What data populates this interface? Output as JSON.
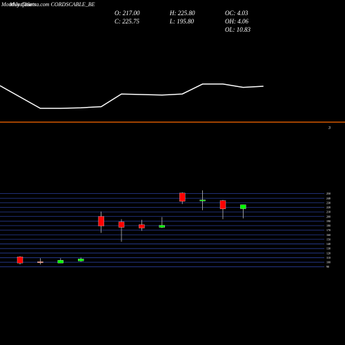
{
  "header": {
    "title": "Monthly Charts",
    "site": "MunafaSutra.com CORDSCABLE_BE"
  },
  "ohlc": {
    "open": "O: 217.00",
    "close": "C: 225.75",
    "high": "H: 225.80",
    "low": "L: 195.80",
    "oc": "OC: 4.03",
    "oh": "OH: 4.06",
    "ol": "OL: 10.83"
  },
  "indicator": {
    "type": "line",
    "label": "3",
    "color": "#ffffff",
    "ylim": [
      0,
      10
    ],
    "values": [
      6.6,
      2.5,
      2.5,
      2.6,
      2.8,
      5.1,
      5.0,
      4.9,
      5.1,
      6.9,
      6.9,
      6.3,
      6.5
    ]
  },
  "chart_data": {
    "type": "candlestick",
    "open": [
      111.75,
      101.25,
      98.25,
      102.75,
      200.25,
      188.25,
      182.25,
      176.25,
      251.25,
      234.75,
      234.75,
      217
    ],
    "high": [
      113.25,
      108.75,
      108.75,
      110.25,
      210.75,
      194.25,
      192.75,
      198.75,
      252.75,
      257.25,
      236.25,
      225.8
    ],
    "low": [
      95.25,
      95.25,
      98.25,
      101.25,
      164.25,
      144.75,
      168.75,
      174.75,
      227.25,
      213.75,
      194.25,
      195.8
    ],
    "close": [
      98.25,
      99.75,
      104.25,
      107.25,
      179.25,
      176.25,
      174.75,
      180.75,
      233.25,
      236.25,
      216.75,
      225.75
    ],
    "colors": [
      "#ff0000",
      "#e07060",
      "#00ff00",
      "#00ff00",
      "#ff0000",
      "#ff0000",
      "#ff0000",
      "#00ff00",
      "#ff0000",
      "#00ff00",
      "#ff0000",
      "#00ff00"
    ],
    "ylim": [
      88,
      257
    ],
    "yticks": [
      90,
      100,
      110,
      120,
      130,
      140,
      150,
      160,
      170,
      180,
      190,
      200,
      210,
      220,
      230,
      240,
      250
    ],
    "grid": true,
    "grid_color": "#2a3f9a"
  }
}
